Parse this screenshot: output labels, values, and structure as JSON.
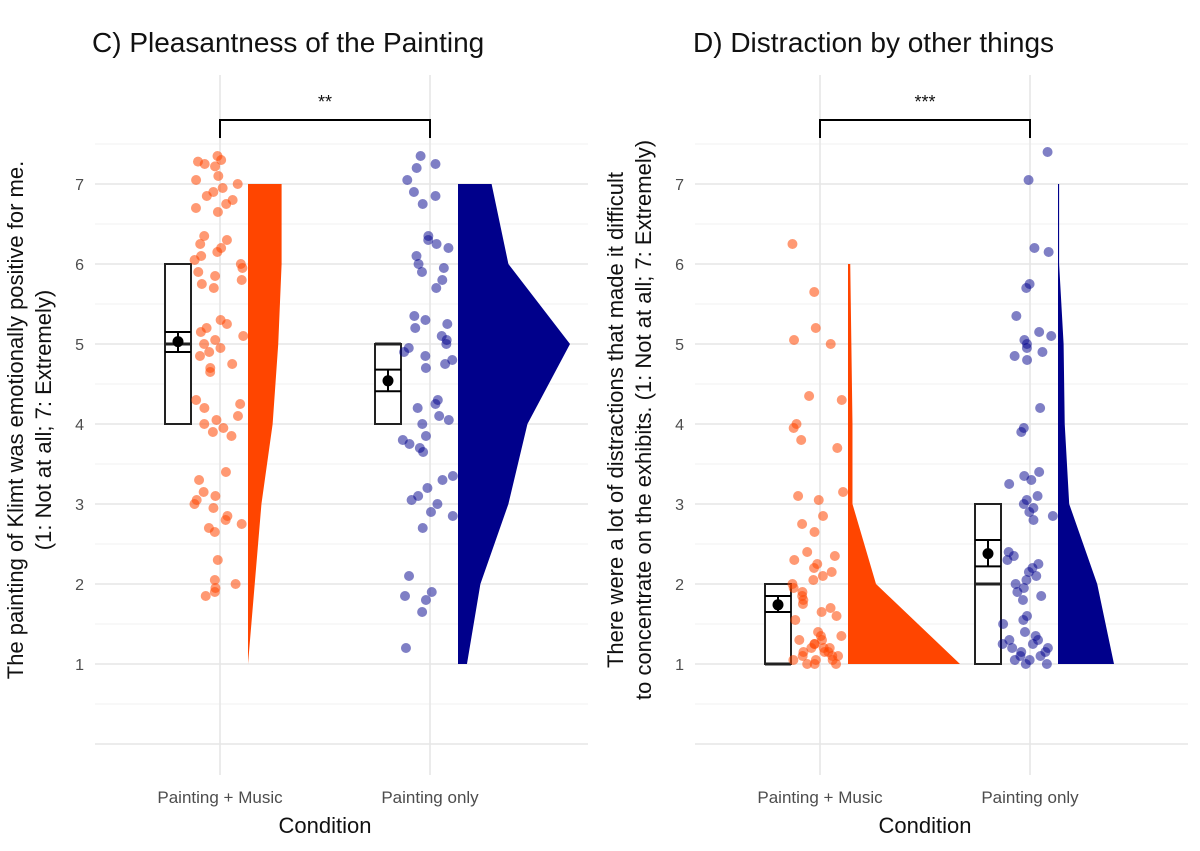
{
  "chart_data": [
    {
      "type": "raincloud",
      "panel_title": "C)  Pleasantness of the Painting",
      "xlabel": "Condition",
      "ylabel_line1": "The painting of Klimt was emotionally positive for me.",
      "ylabel_line2": "(1: Not at all; 7: Extremely)",
      "ylim": [
        -0.1,
        7.9
      ],
      "yticks": [
        1,
        2,
        3,
        4,
        5,
        6,
        7
      ],
      "categories": [
        "Painting + Music",
        "Painting only"
      ],
      "significance": "**",
      "groups": [
        {
          "name": "Painting + Music",
          "color": "#FF4500",
          "box": {
            "q1": 4,
            "median": 5,
            "q3": 6
          },
          "mean": 5.03,
          "ci": [
            4.9,
            5.15
          ],
          "density": [
            [
              1,
              0.0
            ],
            [
              2,
              0.06
            ],
            [
              3,
              0.12
            ],
            [
              4,
              0.22
            ],
            [
              5,
              0.27
            ],
            [
              6,
              0.3
            ],
            [
              7,
              0.3
            ]
          ],
          "points": [
            7.35,
            7.3,
            7.28,
            7.25,
            7.22,
            7.1,
            7.05,
            7.0,
            6.95,
            6.9,
            6.85,
            6.8,
            6.75,
            6.7,
            6.65,
            6.35,
            6.3,
            6.25,
            6.2,
            6.15,
            6.1,
            6.05,
            6.0,
            5.95,
            5.9,
            5.85,
            5.8,
            5.75,
            5.7,
            5.3,
            5.25,
            5.2,
            5.15,
            5.1,
            5.05,
            5.0,
            4.95,
            4.9,
            4.85,
            4.75,
            4.7,
            4.65,
            4.3,
            4.25,
            4.2,
            4.1,
            4.05,
            4.0,
            3.95,
            3.9,
            3.85,
            3.4,
            3.3,
            3.15,
            3.1,
            3.05,
            3.0,
            2.95,
            2.85,
            2.8,
            2.75,
            2.7,
            2.65,
            2.3,
            2.05,
            2.0,
            1.95,
            1.9,
            1.85
          ]
        },
        {
          "name": "Painting only",
          "color": "#00008B",
          "box": {
            "q1": 4,
            "median": 5,
            "q3": 5
          },
          "mean": 4.54,
          "ci": [
            4.41,
            4.68
          ],
          "density": [
            [
              1,
              0.08
            ],
            [
              2,
              0.2
            ],
            [
              3,
              0.45
            ],
            [
              4,
              0.62
            ],
            [
              5,
              1.0
            ],
            [
              6,
              0.45
            ],
            [
              7,
              0.3
            ]
          ],
          "points": [
            7.35,
            7.25,
            7.2,
            7.05,
            6.9,
            6.85,
            6.75,
            6.35,
            6.3,
            6.25,
            6.2,
            6.1,
            6.0,
            5.95,
            5.9,
            5.8,
            5.7,
            5.35,
            5.3,
            5.25,
            5.2,
            5.1,
            5.05,
            5.0,
            4.95,
            4.9,
            4.85,
            4.8,
            4.75,
            4.7,
            4.3,
            4.25,
            4.2,
            4.1,
            4.05,
            4.0,
            3.85,
            3.8,
            3.75,
            3.7,
            3.65,
            3.35,
            3.3,
            3.2,
            3.1,
            3.05,
            3.0,
            2.9,
            2.85,
            2.7,
            2.1,
            1.9,
            1.85,
            1.8,
            1.65,
            1.2
          ]
        }
      ]
    },
    {
      "type": "raincloud",
      "panel_title": "D)  Distraction by other things",
      "xlabel": "Condition",
      "ylabel_line1": "There were a lot of distractions that made it difficult",
      "ylabel_line2": "to concentrate on the exhibits. (1: Not at all; 7: Extremely)",
      "ylim": [
        -0.1,
        7.9
      ],
      "yticks": [
        1,
        2,
        3,
        4,
        5,
        6,
        7
      ],
      "categories": [
        "Painting + Music",
        "Painting only"
      ],
      "significance": "***",
      "groups": [
        {
          "name": "Painting + Music",
          "color": "#FF4500",
          "box": {
            "q1": 1,
            "median": 1,
            "q3": 2
          },
          "mean": 1.74,
          "ci": [
            1.65,
            1.85
          ],
          "density": [
            [
              1,
              1.0
            ],
            [
              2,
              0.25
            ],
            [
              3,
              0.04
            ],
            [
              4,
              0.04
            ],
            [
              5,
              0.03
            ],
            [
              6,
              0.02
            ]
          ],
          "points": [
            6.25,
            5.65,
            5.2,
            5.05,
            5.0,
            4.35,
            4.3,
            4.0,
            3.95,
            3.8,
            3.7,
            3.15,
            3.1,
            3.05,
            2.85,
            2.75,
            2.65,
            2.4,
            2.35,
            2.3,
            2.25,
            2.2,
            2.15,
            2.1,
            2.05,
            2.0,
            1.95,
            1.9,
            1.85,
            1.8,
            1.75,
            1.7,
            1.65,
            1.6,
            1.55,
            1.4,
            1.35,
            1.3,
            1.25,
            1.2,
            1.15,
            1.1,
            1.05,
            1.0,
            1.35,
            1.3,
            1.25,
            1.2,
            1.15,
            1.1,
            1.05,
            1.0,
            1.2,
            1.15,
            1.1,
            1.05,
            1.0
          ]
        },
        {
          "name": "Painting only",
          "color": "#00008B",
          "box": {
            "q1": 1,
            "median": 2,
            "q3": 3
          },
          "mean": 2.38,
          "ci": [
            2.22,
            2.55
          ],
          "density": [
            [
              1,
              0.5
            ],
            [
              2,
              0.35
            ],
            [
              3,
              0.1
            ],
            [
              4,
              0.06
            ],
            [
              5,
              0.05
            ],
            [
              6,
              0.01
            ],
            [
              7,
              0.01
            ]
          ],
          "points": [
            7.4,
            7.05,
            6.2,
            6.15,
            5.75,
            5.7,
            5.35,
            5.15,
            5.1,
            5.05,
            5.0,
            4.95,
            4.9,
            4.85,
            4.8,
            4.2,
            3.95,
            3.9,
            3.4,
            3.35,
            3.3,
            3.25,
            3.1,
            3.05,
            3.0,
            2.95,
            2.9,
            2.85,
            2.8,
            2.4,
            2.35,
            2.3,
            2.25,
            2.2,
            2.15,
            2.1,
            2.05,
            2.0,
            1.95,
            1.9,
            1.85,
            1.8,
            1.6,
            1.55,
            1.5,
            1.4,
            1.35,
            1.3,
            1.25,
            1.2,
            1.15,
            1.1,
            1.05,
            1.0,
            1.3,
            1.25,
            1.2,
            1.15,
            1.1,
            1.05,
            1.0
          ]
        }
      ]
    }
  ]
}
